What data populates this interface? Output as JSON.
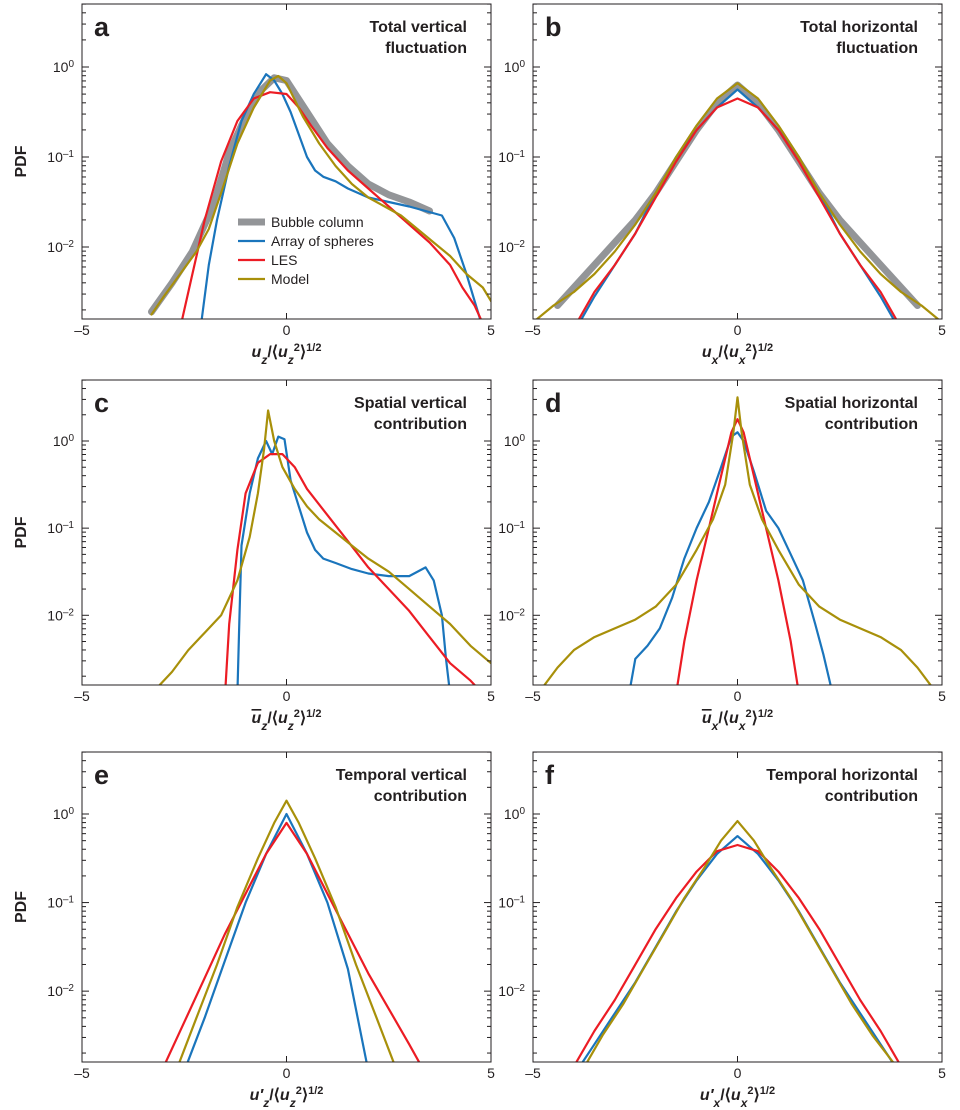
{
  "colors": {
    "bubble_column": "#939598",
    "array_of_spheres": "#1a75bc",
    "les": "#ec1c24",
    "model": "#a8900a"
  },
  "legend": [
    "Bubble column",
    "Array of spheres",
    "LES",
    "Model"
  ],
  "chart_data": [
    {
      "type": "line",
      "panel": "a",
      "title": [
        "Total vertical",
        "fluctuation"
      ],
      "ylabel": "PDF",
      "xlabel": {
        "main": "u",
        "sub": "z",
        "denom_sub": "z"
      },
      "xlim": [
        -5,
        5
      ],
      "ylim_log10": [
        -2.8,
        0.7
      ],
      "yscale": "log",
      "xticks": [
        "–5",
        "0",
        "5"
      ],
      "yticks": [
        0,
        -1,
        -2
      ],
      "legend_position": "center-left",
      "series": [
        {
          "name": "Bubble column",
          "x": [
            -3.3,
            -2.8,
            -2.3,
            -1.8,
            -1.4,
            -1.0,
            -0.6,
            -0.3,
            0.0,
            0.5,
            1.0,
            1.5,
            2.0,
            2.5,
            3.0,
            3.5
          ],
          "log10y": [
            -2.72,
            -2.4,
            -2.05,
            -1.55,
            -0.95,
            -0.55,
            -0.25,
            -0.12,
            -0.15,
            -0.5,
            -0.85,
            -1.1,
            -1.3,
            -1.42,
            -1.5,
            -1.6
          ]
        },
        {
          "name": "Array of spheres",
          "x": [
            -2.1,
            -1.9,
            -1.7,
            -1.4,
            -1.1,
            -0.8,
            -0.5,
            -0.3,
            -0.1,
            0.1,
            0.3,
            0.5,
            0.7,
            0.9,
            1.2,
            1.5,
            2.0,
            2.5,
            3.0,
            3.4,
            3.8,
            4.1,
            4.4,
            4.6,
            4.8
          ],
          "log10y": [
            -2.9,
            -2.2,
            -1.7,
            -1.1,
            -0.6,
            -0.3,
            -0.08,
            -0.15,
            -0.3,
            -0.5,
            -0.75,
            -1.0,
            -1.15,
            -1.22,
            -1.27,
            -1.35,
            -1.45,
            -1.5,
            -1.55,
            -1.6,
            -1.65,
            -1.9,
            -2.3,
            -2.6,
            -2.9
          ]
        },
        {
          "name": "LES",
          "x": [
            -2.6,
            -2.3,
            -2.0,
            -1.6,
            -1.2,
            -0.8,
            -0.4,
            0.0,
            0.3,
            0.6,
            1.0,
            1.5,
            2.0,
            2.5,
            3.0,
            3.5,
            4.0,
            4.3,
            4.6,
            4.8
          ],
          "log10y": [
            -2.9,
            -2.3,
            -1.7,
            -1.05,
            -0.6,
            -0.35,
            -0.28,
            -0.3,
            -0.45,
            -0.65,
            -0.9,
            -1.15,
            -1.35,
            -1.55,
            -1.75,
            -1.95,
            -2.2,
            -2.45,
            -2.65,
            -2.85
          ]
        },
        {
          "name": "Model",
          "x": [
            -3.3,
            -3.0,
            -2.6,
            -2.2,
            -1.9,
            -1.6,
            -1.2,
            -0.8,
            -0.4,
            -0.2,
            0.0,
            0.4,
            0.8,
            1.2,
            1.6,
            2.0,
            2.4,
            2.8,
            3.2,
            3.6,
            4.0,
            4.4,
            4.8,
            5.0
          ],
          "log10y": [
            -2.75,
            -2.55,
            -2.3,
            -2.05,
            -1.8,
            -1.4,
            -0.85,
            -0.45,
            -0.15,
            -0.1,
            -0.18,
            -0.55,
            -0.85,
            -1.1,
            -1.3,
            -1.45,
            -1.55,
            -1.65,
            -1.8,
            -1.95,
            -2.1,
            -2.3,
            -2.45,
            -2.6
          ]
        }
      ]
    },
    {
      "type": "line",
      "panel": "b",
      "title": [
        "Total horizontal",
        "fluctuation"
      ],
      "ylabel": "",
      "xlabel": {
        "main": "u",
        "sub": "x",
        "denom_sub": "x"
      },
      "xlim": [
        -5,
        5
      ],
      "ylim_log10": [
        -2.8,
        0.7
      ],
      "yscale": "log",
      "xticks": [
        "–5",
        "0",
        "5"
      ],
      "yticks": [
        0,
        -1,
        -2
      ],
      "series": [
        {
          "name": "Bubble column",
          "x": [
            -4.4,
            -4.0,
            -3.5,
            -3.0,
            -2.5,
            -2.0,
            -1.5,
            -1.0,
            -0.5,
            0.0,
            0.5,
            1.0,
            1.5,
            2.0,
            2.5,
            3.0,
            3.5,
            4.0,
            4.4
          ],
          "log10y": [
            -2.65,
            -2.45,
            -2.2,
            -1.95,
            -1.7,
            -1.4,
            -1.05,
            -0.7,
            -0.4,
            -0.2,
            -0.4,
            -0.7,
            -1.05,
            -1.4,
            -1.7,
            -1.95,
            -2.2,
            -2.45,
            -2.65
          ]
        },
        {
          "name": "Array of spheres",
          "x": [
            -4.0,
            -3.5,
            -3.0,
            -2.5,
            -2.0,
            -1.5,
            -1.0,
            -0.5,
            0.0,
            0.5,
            1.0,
            1.5,
            2.0,
            2.5,
            3.0,
            3.5,
            4.0
          ],
          "log10y": [
            -2.95,
            -2.55,
            -2.2,
            -1.85,
            -1.4,
            -1.0,
            -0.7,
            -0.45,
            -0.25,
            -0.45,
            -0.7,
            -1.0,
            -1.4,
            -1.85,
            -2.2,
            -2.55,
            -2.95
          ]
        },
        {
          "name": "LES",
          "x": [
            -4.0,
            -3.5,
            -3.0,
            -2.5,
            -2.0,
            -1.5,
            -1.0,
            -0.5,
            0.0,
            0.5,
            1.0,
            1.5,
            2.0,
            2.5,
            3.0,
            3.5,
            4.0
          ],
          "log10y": [
            -2.9,
            -2.5,
            -2.2,
            -1.85,
            -1.45,
            -1.05,
            -0.7,
            -0.45,
            -0.35,
            -0.45,
            -0.7,
            -1.05,
            -1.45,
            -1.85,
            -2.2,
            -2.5,
            -2.9
          ]
        },
        {
          "name": "Model",
          "x": [
            -4.9,
            -4.5,
            -4.0,
            -3.5,
            -3.0,
            -2.5,
            -2.0,
            -1.5,
            -1.0,
            -0.5,
            0.0,
            0.5,
            1.0,
            1.5,
            2.0,
            2.5,
            3.0,
            3.5,
            4.0,
            4.5,
            4.9
          ],
          "log10y": [
            -2.8,
            -2.65,
            -2.5,
            -2.3,
            -2.05,
            -1.75,
            -1.4,
            -1.0,
            -0.65,
            -0.35,
            -0.18,
            -0.35,
            -0.65,
            -1.0,
            -1.4,
            -1.75,
            -2.05,
            -2.3,
            -2.5,
            -2.65,
            -2.8
          ]
        }
      ]
    },
    {
      "type": "line",
      "panel": "c",
      "title": [
        "Spatial vertical",
        "contribution"
      ],
      "ylabel": "PDF",
      "xlabel": {
        "main": "u",
        "sub": "z",
        "denom_sub": "z",
        "overline": true
      },
      "xlim": [
        -5,
        5
      ],
      "ylim_log10": [
        -2.8,
        0.7
      ],
      "yscale": "log",
      "xticks": [
        "–5",
        "0",
        "5"
      ],
      "yticks": [
        0,
        -1,
        -2
      ],
      "series": [
        {
          "name": "Array of spheres",
          "x": [
            -1.2,
            -1.15,
            -1.1,
            -0.9,
            -0.7,
            -0.5,
            -0.35,
            -0.2,
            -0.05,
            0.1,
            0.3,
            0.5,
            0.7,
            0.9,
            1.2,
            1.6,
            2.0,
            2.5,
            3.0,
            3.4,
            3.6,
            3.8,
            3.9,
            4.0
          ],
          "log10y": [
            -2.9,
            -2.0,
            -1.2,
            -0.6,
            -0.2,
            0.0,
            -0.15,
            0.05,
            0.02,
            -0.45,
            -0.75,
            -1.05,
            -1.25,
            -1.35,
            -1.4,
            -1.47,
            -1.52,
            -1.55,
            -1.55,
            -1.45,
            -1.6,
            -2.0,
            -2.5,
            -2.9
          ]
        },
        {
          "name": "LES",
          "x": [
            -1.5,
            -1.4,
            -1.2,
            -1.0,
            -0.7,
            -0.4,
            -0.1,
            0.2,
            0.5,
            1.0,
            1.5,
            2.0,
            2.5,
            3.0,
            3.5,
            4.0,
            4.5,
            4.8
          ],
          "log10y": [
            -2.9,
            -2.1,
            -1.25,
            -0.6,
            -0.25,
            -0.15,
            -0.15,
            -0.3,
            -0.55,
            -0.85,
            -1.15,
            -1.45,
            -1.7,
            -1.95,
            -2.25,
            -2.55,
            -2.75,
            -2.9
          ]
        },
        {
          "name": "Model",
          "x": [
            -3.3,
            -2.8,
            -2.4,
            -2.0,
            -1.6,
            -1.2,
            -0.9,
            -0.7,
            -0.55,
            -0.45,
            -0.3,
            -0.1,
            0.2,
            0.5,
            0.8,
            1.2,
            1.6,
            2.0,
            2.5,
            3.0,
            3.5,
            4.0,
            4.5,
            5.0
          ],
          "log10y": [
            -2.9,
            -2.65,
            -2.4,
            -2.2,
            -2.0,
            -1.6,
            -1.1,
            -0.6,
            -0.1,
            0.35,
            0.0,
            -0.3,
            -0.55,
            -0.75,
            -0.9,
            -1.05,
            -1.2,
            -1.35,
            -1.5,
            -1.7,
            -1.9,
            -2.1,
            -2.35,
            -2.55
          ]
        }
      ]
    },
    {
      "type": "line",
      "panel": "d",
      "title": [
        "Spatial horizontal",
        "contribution"
      ],
      "ylabel": "",
      "xlabel": {
        "main": "u",
        "sub": "x",
        "denom_sub": "x",
        "overline": true
      },
      "xlim": [
        -5,
        5
      ],
      "ylim_log10": [
        -2.8,
        0.7
      ],
      "yscale": "log",
      "xticks": [
        "–5",
        "0",
        "5"
      ],
      "yticks": [
        0,
        -1,
        -2
      ],
      "series": [
        {
          "name": "Array of spheres",
          "x": [
            -2.65,
            -2.5,
            -2.2,
            -1.9,
            -1.6,
            -1.3,
            -1.0,
            -0.7,
            -0.4,
            -0.15,
            0.0,
            0.15,
            0.4,
            0.7,
            1.0,
            1.3,
            1.6,
            1.9,
            2.1,
            2.3
          ],
          "log10y": [
            -2.9,
            -2.5,
            -2.35,
            -2.15,
            -1.8,
            -1.35,
            -1.0,
            -0.7,
            -0.3,
            0.05,
            0.1,
            0.0,
            -0.35,
            -0.8,
            -1.0,
            -1.3,
            -1.6,
            -2.1,
            -2.45,
            -2.85
          ]
        },
        {
          "name": "LES",
          "x": [
            -1.5,
            -1.3,
            -1.0,
            -0.7,
            -0.4,
            -0.15,
            0.0,
            0.15,
            0.4,
            0.7,
            1.0,
            1.3,
            1.5
          ],
          "log10y": [
            -2.9,
            -2.3,
            -1.6,
            -1.0,
            -0.4,
            0.1,
            0.25,
            0.1,
            -0.4,
            -1.0,
            -1.6,
            -2.3,
            -2.9
          ]
        },
        {
          "name": "Model",
          "x": [
            -4.8,
            -4.4,
            -4.0,
            -3.5,
            -3.0,
            -2.5,
            -2.0,
            -1.5,
            -1.0,
            -0.6,
            -0.3,
            -0.1,
            0.0,
            0.1,
            0.3,
            0.6,
            1.0,
            1.5,
            2.0,
            2.5,
            3.0,
            3.5,
            4.0,
            4.4,
            4.8
          ],
          "log10y": [
            -2.85,
            -2.6,
            -2.4,
            -2.25,
            -2.15,
            -2.05,
            -1.9,
            -1.65,
            -1.25,
            -0.9,
            -0.5,
            0.1,
            0.5,
            0.1,
            -0.5,
            -0.9,
            -1.25,
            -1.65,
            -1.9,
            -2.05,
            -2.15,
            -2.25,
            -2.4,
            -2.6,
            -2.85
          ]
        }
      ]
    },
    {
      "type": "line",
      "panel": "e",
      "title": [
        "Temporal vertical",
        "contribution"
      ],
      "ylabel": "PDF",
      "xlabel": {
        "main": "u",
        "sub": "z",
        "denom_sub": "z",
        "prime": true
      },
      "xlim": [
        -5,
        5
      ],
      "ylim_log10": [
        -2.8,
        0.7
      ],
      "yscale": "log",
      "xticks": [
        "–5",
        "0",
        "5"
      ],
      "yticks": [
        0,
        -1,
        -2
      ],
      "series": [
        {
          "name": "Array of spheres",
          "x": [
            -2.5,
            -2.0,
            -1.5,
            -1.0,
            -0.5,
            0.0,
            0.5,
            1.0,
            1.5,
            2.0
          ],
          "log10y": [
            -2.9,
            -2.3,
            -1.65,
            -1.0,
            -0.45,
            0.0,
            -0.45,
            -1.0,
            -1.75,
            -2.9
          ]
        },
        {
          "name": "LES",
          "x": [
            -3.0,
            -2.5,
            -2.0,
            -1.5,
            -1.0,
            -0.5,
            0.0,
            0.5,
            1.0,
            1.5,
            2.0,
            2.5,
            3.0,
            3.3
          ],
          "log10y": [
            -2.85,
            -2.35,
            -1.85,
            -1.35,
            -0.9,
            -0.45,
            -0.1,
            -0.45,
            -0.9,
            -1.35,
            -1.8,
            -2.2,
            -2.6,
            -2.85
          ]
        },
        {
          "name": "Model",
          "x": [
            -2.7,
            -2.2,
            -1.7,
            -1.2,
            -0.7,
            -0.3,
            0.0,
            0.3,
            0.7,
            1.2,
            1.7,
            2.2,
            2.7
          ],
          "log10y": [
            -2.9,
            -2.3,
            -1.7,
            -1.05,
            -0.5,
            -0.1,
            0.15,
            -0.1,
            -0.5,
            -1.05,
            -1.7,
            -2.3,
            -2.9
          ]
        }
      ]
    },
    {
      "type": "line",
      "panel": "f",
      "title": [
        "Temporal horizontal",
        "contribution"
      ],
      "ylabel": "",
      "xlabel": {
        "main": "u",
        "sub": "x",
        "denom_sub": "x",
        "prime": true
      },
      "xlim": [
        -5,
        5
      ],
      "ylim_log10": [
        -2.8,
        0.7
      ],
      "yscale": "log",
      "xticks": [
        "–5",
        "0",
        "5"
      ],
      "yticks": [
        0,
        -1,
        -2
      ],
      "series": [
        {
          "name": "Array of spheres",
          "x": [
            -4.0,
            -3.5,
            -3.0,
            -2.5,
            -2.0,
            -1.5,
            -1.0,
            -0.5,
            0.0,
            0.5,
            1.0,
            1.5,
            2.0,
            2.5,
            3.0,
            3.5,
            4.0
          ],
          "log10y": [
            -2.95,
            -2.6,
            -2.25,
            -1.9,
            -1.5,
            -1.1,
            -0.75,
            -0.45,
            -0.25,
            -0.45,
            -0.75,
            -1.1,
            -1.5,
            -1.9,
            -2.25,
            -2.6,
            -2.95
          ]
        },
        {
          "name": "LES",
          "x": [
            -4.0,
            -3.5,
            -3.0,
            -2.5,
            -2.0,
            -1.5,
            -1.0,
            -0.5,
            0.0,
            0.5,
            1.0,
            1.5,
            2.0,
            2.5,
            3.0,
            3.5,
            4.0
          ],
          "log10y": [
            -2.85,
            -2.45,
            -2.1,
            -1.7,
            -1.3,
            -0.95,
            -0.65,
            -0.42,
            -0.35,
            -0.42,
            -0.65,
            -0.95,
            -1.3,
            -1.7,
            -2.1,
            -2.45,
            -2.85
          ]
        },
        {
          "name": "Model",
          "x": [
            -3.8,
            -3.3,
            -2.8,
            -2.3,
            -1.8,
            -1.3,
            -0.8,
            -0.4,
            0.0,
            0.4,
            0.8,
            1.3,
            1.8,
            2.3,
            2.8,
            3.3,
            3.8,
            4.0
          ],
          "log10y": [
            -2.9,
            -2.5,
            -2.15,
            -1.75,
            -1.35,
            -0.95,
            -0.6,
            -0.3,
            -0.08,
            -0.3,
            -0.6,
            -0.95,
            -1.35,
            -1.75,
            -2.15,
            -2.5,
            -2.8,
            -2.9
          ]
        }
      ]
    }
  ]
}
